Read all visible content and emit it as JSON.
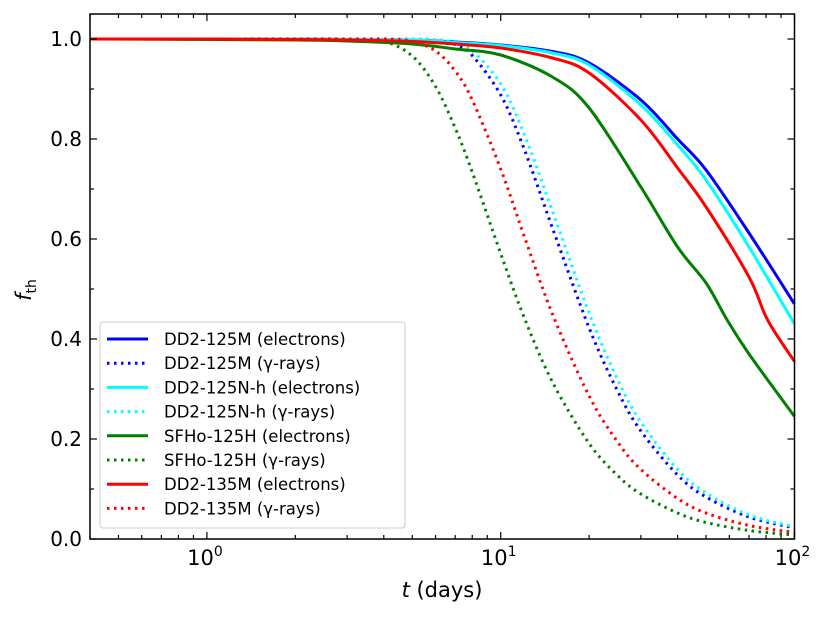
{
  "chart_data": {
    "type": "line",
    "title": "",
    "xlabel": "t (days)",
    "xlabel_var": "t",
    "xlabel_unit": " (days)",
    "ylabel": "f_th",
    "ylabel_main": "f",
    "ylabel_sub": "th",
    "xscale": "log",
    "xlim": [
      0.4,
      100
    ],
    "ylim": [
      0,
      1.05
    ],
    "grid": false,
    "legend_placement": "lower-left",
    "x_ticks": [
      {
        "value": 1,
        "base": "10",
        "exp": "0"
      },
      {
        "value": 10,
        "base": "10",
        "exp": "1"
      },
      {
        "value": 100,
        "base": "10",
        "exp": "2"
      }
    ],
    "y_ticks": [
      {
        "value": 0,
        "label": "0.0"
      },
      {
        "value": 0.2,
        "label": "0.2"
      },
      {
        "value": 0.4,
        "label": "0.4"
      },
      {
        "value": 0.6,
        "label": "0.6"
      },
      {
        "value": 0.8,
        "label": "0.8"
      },
      {
        "value": 1.0,
        "label": "1.0"
      }
    ],
    "series": [
      {
        "name": "DD2-125M (electrons)",
        "color": "#0000ff",
        "style": "solid",
        "points": [
          [
            0.4,
            1
          ],
          [
            1,
            1
          ],
          [
            2,
            1
          ],
          [
            3,
            0.999
          ],
          [
            5,
            0.998
          ],
          [
            7,
            0.994
          ],
          [
            10,
            0.988
          ],
          [
            15,
            0.975
          ],
          [
            20,
            0.952
          ],
          [
            30,
            0.878
          ],
          [
            40,
            0.8
          ],
          [
            50,
            0.738
          ],
          [
            70,
            0.612
          ],
          [
            100,
            0.47
          ]
        ]
      },
      {
        "name": "DD2-125M (γ-rays)",
        "color": "#0000ff",
        "style": "dotted",
        "points": [
          [
            0.4,
            1
          ],
          [
            1,
            1
          ],
          [
            3,
            1
          ],
          [
            4,
            1
          ],
          [
            5,
            1
          ],
          [
            6,
            0.998
          ],
          [
            7,
            0.989
          ],
          [
            8,
            0.967
          ],
          [
            10,
            0.888
          ],
          [
            12,
            0.781
          ],
          [
            15,
            0.622
          ],
          [
            20,
            0.422
          ],
          [
            25,
            0.296
          ],
          [
            30,
            0.216
          ],
          [
            40,
            0.128
          ],
          [
            50,
            0.084
          ],
          [
            70,
            0.044
          ],
          [
            100,
            0.022
          ]
        ]
      },
      {
        "name": "DD2-125N-h (electrons)",
        "color": "#00ffff",
        "style": "solid",
        "points": [
          [
            0.4,
            1
          ],
          [
            1,
            1
          ],
          [
            2,
            1
          ],
          [
            3,
            0.999
          ],
          [
            5,
            0.998
          ],
          [
            7,
            0.993
          ],
          [
            10,
            0.987
          ],
          [
            15,
            0.972
          ],
          [
            20,
            0.948
          ],
          [
            30,
            0.868
          ],
          [
            40,
            0.788
          ],
          [
            50,
            0.718
          ],
          [
            70,
            0.584
          ],
          [
            100,
            0.43
          ]
        ]
      },
      {
        "name": "DD2-125N-h (γ-rays)",
        "color": "#00ffff",
        "style": "dotted",
        "points": [
          [
            0.4,
            1
          ],
          [
            1,
            1
          ],
          [
            3,
            1
          ],
          [
            4,
            1
          ],
          [
            5,
            1
          ],
          [
            6,
            0.999
          ],
          [
            7,
            0.993
          ],
          [
            8,
            0.977
          ],
          [
            10,
            0.91
          ],
          [
            12,
            0.811
          ],
          [
            15,
            0.656
          ],
          [
            20,
            0.452
          ],
          [
            25,
            0.319
          ],
          [
            30,
            0.234
          ],
          [
            40,
            0.139
          ],
          [
            50,
            0.092
          ],
          [
            70,
            0.048
          ],
          [
            100,
            0.024
          ]
        ]
      },
      {
        "name": "SFHo-125H (electrons)",
        "color": "#008000",
        "style": "solid",
        "points": [
          [
            0.4,
            1
          ],
          [
            1,
            0.999
          ],
          [
            2,
            0.998
          ],
          [
            3,
            0.996
          ],
          [
            5,
            0.99
          ],
          [
            7,
            0.98
          ],
          [
            10,
            0.968
          ],
          [
            15,
            0.924
          ],
          [
            20,
            0.862
          ],
          [
            30,
            0.704
          ],
          [
            40,
            0.584
          ],
          [
            50,
            0.512
          ],
          [
            59,
            0.438
          ],
          [
            70,
            0.37
          ],
          [
            100,
            0.245
          ]
        ]
      },
      {
        "name": "SFHo-125H (γ-rays)",
        "color": "#008000",
        "style": "dotted",
        "points": [
          [
            0.4,
            1
          ],
          [
            1,
            1
          ],
          [
            3,
            1
          ],
          [
            4,
            0.995
          ],
          [
            5,
            0.966
          ],
          [
            6,
            0.905
          ],
          [
            7,
            0.822
          ],
          [
            8,
            0.734
          ],
          [
            10,
            0.571
          ],
          [
            12,
            0.444
          ],
          [
            15,
            0.314
          ],
          [
            20,
            0.191
          ],
          [
            25,
            0.127
          ],
          [
            30,
            0.09
          ],
          [
            40,
            0.052
          ],
          [
            50,
            0.033
          ],
          [
            70,
            0.017
          ],
          [
            100,
            0.008
          ]
        ]
      },
      {
        "name": "DD2-135M (electrons)",
        "color": "#ff0000",
        "style": "solid",
        "points": [
          [
            0.4,
            1
          ],
          [
            1,
            1
          ],
          [
            2,
            0.999
          ],
          [
            3,
            0.998
          ],
          [
            5,
            0.995
          ],
          [
            7,
            0.99
          ],
          [
            10,
            0.982
          ],
          [
            15,
            0.962
          ],
          [
            20,
            0.932
          ],
          [
            30,
            0.838
          ],
          [
            40,
            0.742
          ],
          [
            50,
            0.664
          ],
          [
            70,
            0.524
          ],
          [
            81,
            0.438
          ],
          [
            100,
            0.355
          ]
        ]
      },
      {
        "name": "DD2-135M (γ-rays)",
        "color": "#ff0000",
        "style": "dotted",
        "points": [
          [
            0.4,
            1
          ],
          [
            1,
            1
          ],
          [
            3,
            1
          ],
          [
            4,
            1
          ],
          [
            5,
            0.995
          ],
          [
            6,
            0.976
          ],
          [
            7,
            0.936
          ],
          [
            8,
            0.878
          ],
          [
            10,
            0.74
          ],
          [
            12,
            0.607
          ],
          [
            15,
            0.45
          ],
          [
            20,
            0.286
          ],
          [
            25,
            0.194
          ],
          [
            30,
            0.139
          ],
          [
            40,
            0.081
          ],
          [
            50,
            0.052
          ],
          [
            70,
            0.027
          ],
          [
            100,
            0.013
          ]
        ]
      }
    ]
  }
}
